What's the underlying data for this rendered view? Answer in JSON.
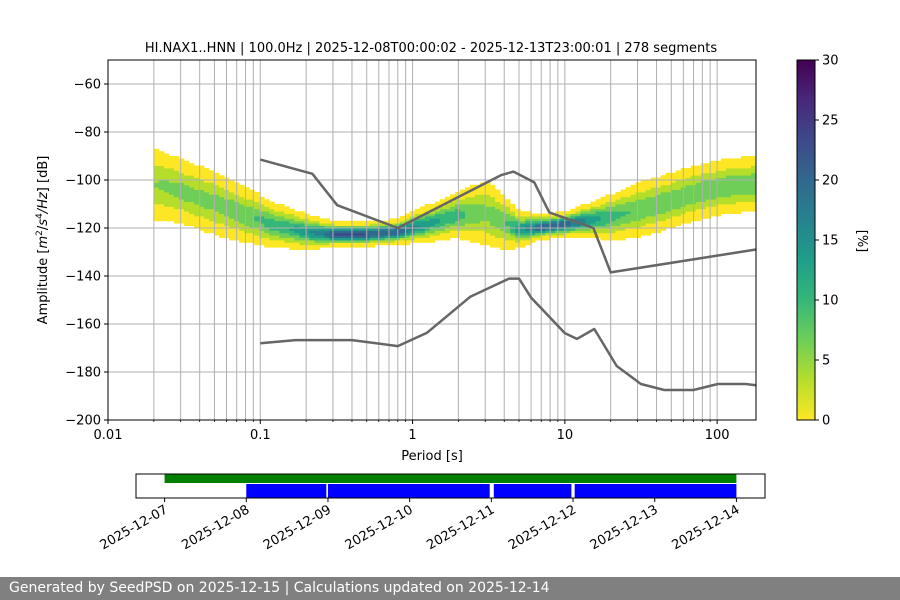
{
  "chart_data": [
    {
      "type": "heatmap",
      "title": "HI.NAX1..HNN | 100.0Hz | 2025-12-08T00:00:02 - 2025-12-13T23:00:01 | 278 segments",
      "xlabel": "Period [s]",
      "ylabel_parts": [
        "Amplitude [",
        "m",
        "2",
        "/",
        "s",
        "4",
        "/Hz",
        "] [dB]"
      ],
      "x_scale": "log",
      "xlim": [
        0.01,
        180
      ],
      "ylim": [
        -200,
        -50
      ],
      "x_ticks": [
        0.01,
        0.1,
        1,
        10,
        100
      ],
      "x_tick_labels": [
        "0.01",
        "0.1",
        "1",
        "10",
        "100"
      ],
      "y_ticks": [
        -200,
        -180,
        -160,
        -140,
        -120,
        -100,
        -80,
        -60
      ],
      "y_tick_labels": [
        "−200",
        "−180",
        "−160",
        "−140",
        "−120",
        "−100",
        "−80",
        "−60"
      ],
      "grid": true,
      "colormap": "viridis",
      "colorbar": {
        "label": "[%]",
        "range": [
          0,
          30
        ],
        "ticks": [
          0,
          5,
          10,
          15,
          20,
          25,
          30
        ],
        "tick_labels": [
          "0",
          "5",
          "10",
          "15",
          "20",
          "25",
          "30"
        ],
        "colors": [
          "#fde725",
          "#b5de2b",
          "#6ece58",
          "#35b779",
          "#1f9e89",
          "#26828e",
          "#31688e",
          "#3e4989",
          "#482878",
          "#440154"
        ]
      },
      "psd_mode": {
        "period": [
          0.02,
          0.03,
          0.05,
          0.08,
          0.12,
          0.2,
          0.3,
          0.5,
          0.8,
          1.2,
          2,
          3,
          4,
          5,
          7,
          10,
          15,
          20,
          30,
          50,
          80,
          120,
          180
        ],
        "db": [
          -102,
          -105,
          -110,
          -115,
          -119,
          -122,
          -123,
          -123,
          -122,
          -119,
          -115,
          -114,
          -118,
          -121,
          -120,
          -119,
          -117,
          -116,
          -113,
          -109,
          -105,
          -103,
          -102
        ],
        "spread_db": [
          7,
          6,
          6,
          5,
          4,
          3,
          2,
          2,
          2,
          3,
          4,
          6,
          5,
          3,
          2,
          2,
          3,
          4,
          5,
          5,
          5,
          5,
          5
        ]
      },
      "nhnm": {
        "period": [
          0.1,
          0.22,
          0.32,
          0.8,
          3.8,
          4.6,
          6.3,
          7.9,
          15.4,
          20,
          354.8
        ],
        "db": [
          -91.5,
          -97.4,
          -110.5,
          -120,
          -98,
          -96.5,
          -101,
          -113.5,
          -120,
          -138.5,
          -126
        ]
      },
      "nlnm": {
        "period": [
          0.1,
          0.17,
          0.4,
          0.8,
          1.24,
          2.4,
          4.3,
          5,
          6,
          10,
          12,
          15.6,
          21.9,
          31.6,
          45,
          70,
          101,
          154,
          180
        ],
        "db": [
          -168,
          -166.7,
          -166.7,
          -169.2,
          -163.7,
          -148.6,
          -141.1,
          -141.1,
          -149,
          -163.8,
          -166.2,
          -162.1,
          -177.5,
          -185,
          -187.5,
          -187.5,
          -185,
          -185,
          -185.5
        ]
      },
      "line_color": "#666666"
    },
    {
      "type": "timeline",
      "x_tick_labels": [
        "2025-12-07",
        "2025-12-08",
        "2025-12-09",
        "2025-12-10",
        "2025-12-11",
        "2025-12-12",
        "2025-12-13",
        "2025-12-14"
      ],
      "xlim_days": [
        -0.35,
        7.35
      ],
      "data_availability": {
        "color": "#008000",
        "start_day": 0,
        "end_day": 7
      },
      "psd_segments": {
        "color": "#0000ff",
        "ranges_days": [
          [
            1.0,
            1.98
          ],
          [
            2.0,
            3.98
          ],
          [
            4.03,
            4.98
          ],
          [
            5.02,
            7.0
          ]
        ]
      }
    }
  ],
  "footer": {
    "text": "Generated by SeedPSD on 2025-12-15 | Calculations updated on 2025-12-14"
  }
}
